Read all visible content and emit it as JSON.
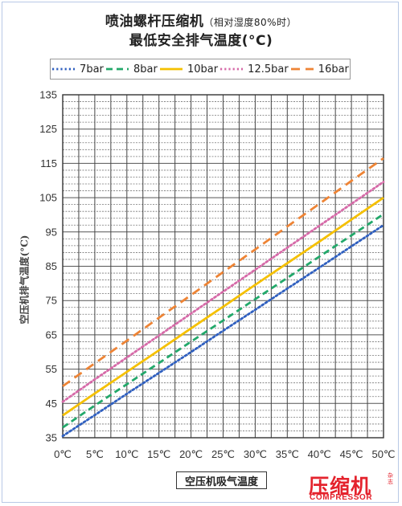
{
  "header": {
    "title_main": "喷油螺杆压缩机",
    "title_note": "（相对湿度80%时）",
    "subtitle": "最低安全排气温度(°C)"
  },
  "chart_data": {
    "type": "line",
    "title": "喷油螺杆压缩机（相对湿度80%时）最低安全排气温度(°C)",
    "xlabel": "空压机吸气温度",
    "ylabel": "空压机排气温度(°C)",
    "categories": [
      "0℃",
      "5℃",
      "10℃",
      "15℃",
      "20℃",
      "25℃",
      "30℃",
      "35℃",
      "40℃",
      "45℃",
      "50℃"
    ],
    "x": [
      0,
      5,
      10,
      15,
      20,
      25,
      30,
      35,
      40,
      45,
      50
    ],
    "xlim": [
      0,
      50
    ],
    "ylim": [
      35,
      135
    ],
    "yticks": [
      35,
      45,
      55,
      65,
      75,
      85,
      95,
      105,
      115,
      125,
      135
    ],
    "grid": true,
    "legend_position": "top",
    "series": [
      {
        "name": "7bar",
        "color": "#2f5fbf",
        "dash": "dotted",
        "values": [
          35.5,
          41.6,
          47.8,
          53.9,
          60.0,
          66.2,
          72.3,
          78.5,
          84.6,
          90.8,
          97.0
        ]
      },
      {
        "name": "8bar",
        "color": "#22a86a",
        "dash": "dashed",
        "values": [
          38.0,
          44.4,
          50.6,
          56.8,
          63.0,
          69.2,
          75.4,
          81.6,
          87.8,
          94.0,
          100.2
        ]
      },
      {
        "name": "10bar",
        "color": "#f5c000",
        "dash": "solid",
        "values": [
          41.5,
          47.9,
          54.2,
          60.5,
          66.9,
          73.2,
          79.6,
          85.9,
          92.2,
          98.6,
          105.0
        ]
      },
      {
        "name": "12.5bar",
        "color": "#d66aa8",
        "dash": "dotted",
        "values": [
          45.5,
          52.0,
          58.4,
          64.8,
          71.2,
          77.6,
          84.0,
          90.4,
          96.8,
          103.2,
          109.6
        ]
      },
      {
        "name": "16bar",
        "color": "#ee8435",
        "dash": "longdash",
        "values": [
          50.0,
          56.7,
          63.3,
          70.0,
          76.6,
          83.3,
          89.9,
          96.6,
          103.2,
          109.9,
          116.5
        ]
      }
    ]
  },
  "logo": {
    "cn": "压缩机",
    "en": "COMPRESSOR",
    "side": "杂志"
  }
}
